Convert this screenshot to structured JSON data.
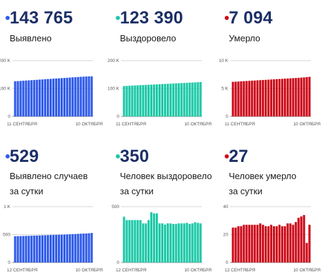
{
  "panels": [
    {
      "id": "p1",
      "number": "143 765",
      "label_lines": [
        "Выявлено"
      ],
      "color": "#2f5bea"
    },
    {
      "id": "p2",
      "number": "123 390",
      "label_lines": [
        "Выздоровело"
      ],
      "color": "#1cc9a6"
    },
    {
      "id": "p3",
      "number": "7 094",
      "label_lines": [
        "Умерло"
      ],
      "color": "#cc0a1a"
    },
    {
      "id": "p4",
      "number": "529",
      "label_lines": [
        "Выявлено случаев",
        "за сутки"
      ],
      "color": "#2f5bea"
    },
    {
      "id": "p5",
      "number": "350",
      "label_lines": [
        "Человек выздоровело",
        "за сутки"
      ],
      "color": "#1cc9a6"
    },
    {
      "id": "p6",
      "number": "27",
      "label_lines": [
        "Человек умерло",
        "за сутки"
      ],
      "color": "#cc0a1a"
    }
  ],
  "chart_data": [
    {
      "type": "bar",
      "panel": "p1",
      "color": "#2f5bea",
      "yticks": [
        "200 K",
        "100 K",
        "0"
      ],
      "ylim": [
        0,
        200000
      ],
      "xlabels": [
        "11 СЕНТЯБРЯ",
        "10 ОКТЯБРЯ"
      ],
      "values": [
        126000,
        126700,
        127300,
        128000,
        128600,
        129300,
        130000,
        130600,
        131300,
        132000,
        132600,
        133300,
        134000,
        134600,
        135300,
        136000,
        136600,
        137300,
        138000,
        138600,
        139300,
        140000,
        140600,
        141300,
        142000,
        142600,
        143100,
        143500,
        143765
      ]
    },
    {
      "type": "bar",
      "panel": "p2",
      "color": "#1cc9a6",
      "yticks": [
        "200 K",
        "100 K",
        "0"
      ],
      "ylim": [
        0,
        200000
      ],
      "xlabels": [
        "11 СЕНТЯБРЯ",
        "10 ОКТЯБРЯ"
      ],
      "values": [
        109000,
        109500,
        110000,
        110500,
        111000,
        111500,
        112000,
        112500,
        113000,
        113500,
        114000,
        114500,
        115000,
        115500,
        116000,
        116500,
        117000,
        117500,
        118000,
        118500,
        119000,
        119500,
        120000,
        120500,
        121000,
        121600,
        122200,
        122800,
        123390
      ]
    },
    {
      "type": "bar",
      "panel": "p3",
      "color": "#cc0a1a",
      "yticks": [
        "10 K",
        "5 K",
        "0"
      ],
      "ylim": [
        0,
        10000
      ],
      "xlabels": [
        "11 СЕНТЯБРЯ",
        "10 ОКТЯБРЯ"
      ],
      "values": [
        6200,
        6230,
        6260,
        6290,
        6320,
        6350,
        6380,
        6410,
        6440,
        6470,
        6500,
        6530,
        6560,
        6590,
        6620,
        6650,
        6680,
        6710,
        6740,
        6770,
        6800,
        6830,
        6860,
        6890,
        6920,
        6960,
        7000,
        7050,
        7094
      ]
    },
    {
      "type": "bar",
      "panel": "p4",
      "color": "#2f5bea",
      "yticks": [
        "1 K",
        "500",
        "0"
      ],
      "ylim": [
        0,
        1000
      ],
      "xlabels": [
        "12 СЕНТЯБРЯ",
        "10 ОКТЯБРЯ"
      ],
      "values": [
        470,
        472,
        473,
        475,
        477,
        478,
        480,
        482,
        483,
        485,
        487,
        488,
        490,
        492,
        493,
        495,
        497,
        498,
        500,
        503,
        505,
        508,
        510,
        513,
        515,
        518,
        520,
        523,
        529
      ]
    },
    {
      "type": "bar",
      "panel": "p5",
      "color": "#1cc9a6",
      "yticks": [
        "500",
        "0"
      ],
      "ylim": [
        0,
        500
      ],
      "xlabels": [
        "12 СЕНТЯБРЯ",
        "10 ОКТЯБРЯ"
      ],
      "values": [
        410,
        380,
        380,
        380,
        380,
        380,
        380,
        350,
        350,
        380,
        450,
        440,
        440,
        350,
        350,
        340,
        350,
        350,
        345,
        345,
        350,
        350,
        350,
        355,
        345,
        350,
        360,
        355,
        350
      ]
    },
    {
      "type": "bar",
      "panel": "p6",
      "color": "#cc0a1a",
      "yticks": [
        "40",
        "20",
        "0"
      ],
      "ylim": [
        0,
        40
      ],
      "xlabels": [
        "12 СЕНТЯБРЯ",
        "10 ОКТЯБРЯ"
      ],
      "values": [
        25,
        25,
        26,
        26,
        27,
        27,
        27,
        27,
        27,
        27,
        28,
        27,
        26,
        26,
        27,
        26,
        26,
        27,
        26,
        26,
        28,
        28,
        27,
        29,
        32,
        33,
        34,
        14,
        27
      ]
    }
  ]
}
